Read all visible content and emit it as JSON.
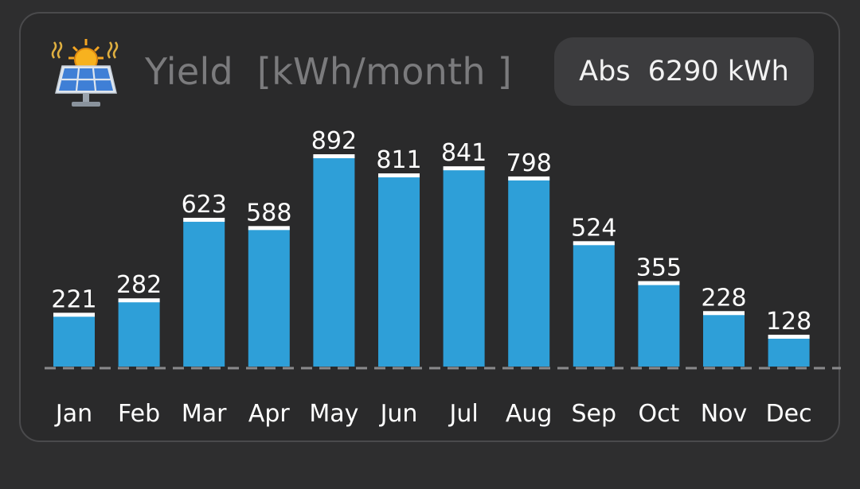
{
  "header": {
    "icon": "solar-panel-icon",
    "title": "Yield  [kWh/month ]",
    "total_label": "Abs",
    "total_value": "6290 kWh"
  },
  "colors": {
    "bar": "#2e9fd8",
    "bar_cap": "#ffffff",
    "card_background": "#2a2a2b",
    "title_text": "#7b7b7d"
  },
  "chart_data": {
    "type": "bar",
    "categories": [
      "Jan",
      "Feb",
      "Mar",
      "Apr",
      "May",
      "Jun",
      "Jul",
      "Aug",
      "Sep",
      "Oct",
      "Nov",
      "Dec"
    ],
    "values": [
      221,
      282,
      623,
      588,
      892,
      811,
      841,
      798,
      524,
      355,
      228,
      128
    ],
    "title": "Yield  [kWh/month ]",
    "xlabel": "",
    "ylabel": "",
    "ylim": [
      0,
      892
    ],
    "grid": false,
    "legend": "none"
  }
}
